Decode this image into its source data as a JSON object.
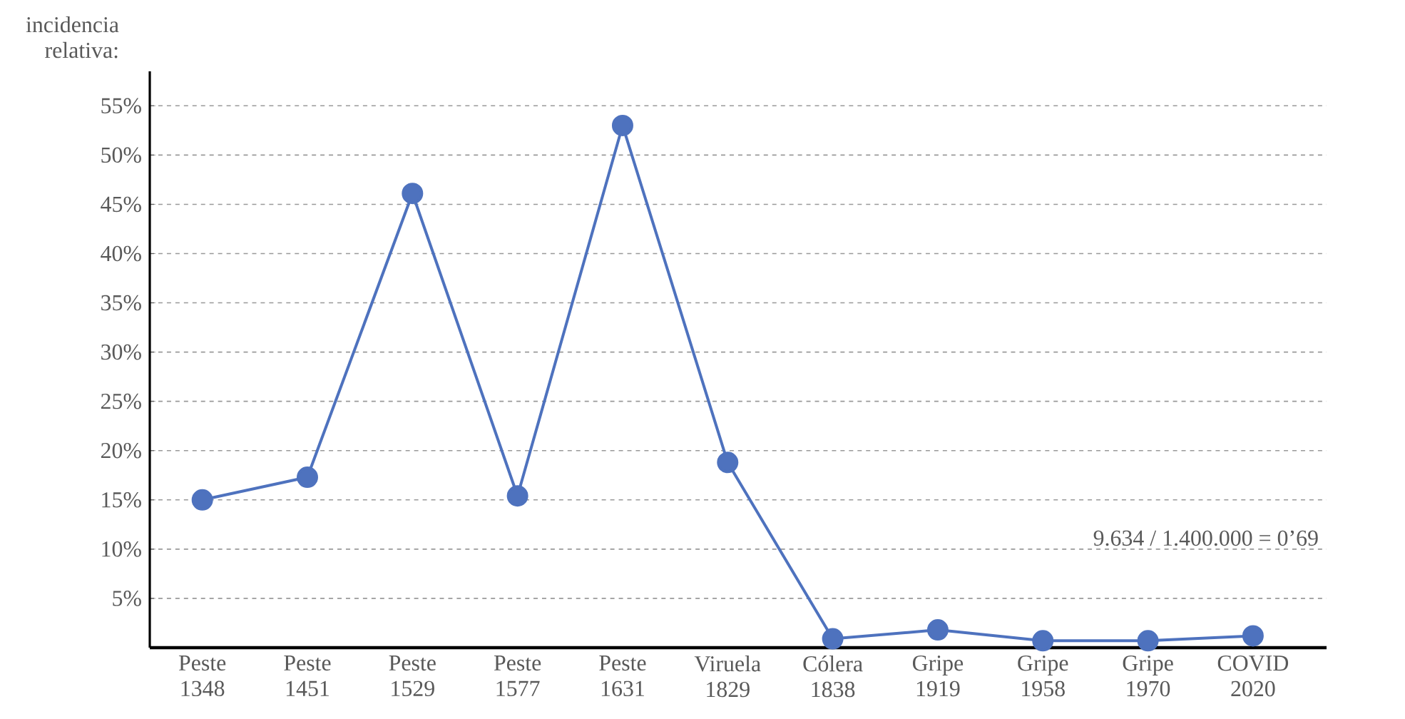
{
  "chart_data": {
    "type": "line",
    "ylabel": "incidencia relativa:",
    "categories": [
      "Peste 1348",
      "Peste 1451",
      "Peste 1529",
      "Peste 1577",
      "Peste 1631",
      "Viruela 1829",
      "Cólera 1838",
      "Gripe 1919",
      "Gripe 1958",
      "Gripe 1970",
      "COVID 2020"
    ],
    "series": [
      {
        "color": "#4e72be",
        "values": [
          15.0,
          17.3,
          46.1,
          15.4,
          53.0,
          18.8,
          0.9,
          1.8,
          0.7,
          0.7,
          1.2
        ]
      }
    ],
    "ylim": [
      0,
      58.5
    ],
    "yticks": [
      {
        "value": 5,
        "label": "5%"
      },
      {
        "value": 10,
        "label": "10%"
      },
      {
        "value": 15,
        "label": "15%"
      },
      {
        "value": 20,
        "label": "20%"
      },
      {
        "value": 25,
        "label": "25%"
      },
      {
        "value": 30,
        "label": "30%"
      },
      {
        "value": 35,
        "label": "35%"
      },
      {
        "value": 40,
        "label": "40%"
      },
      {
        "value": 45,
        "label": "45%"
      },
      {
        "value": 50,
        "label": "50%"
      },
      {
        "value": 55,
        "label": "55%"
      }
    ],
    "grid": "y",
    "marker": "circle",
    "line_style": "solid",
    "annotations": [
      "9.634 / 1.400.000 = 0’69"
    ]
  }
}
